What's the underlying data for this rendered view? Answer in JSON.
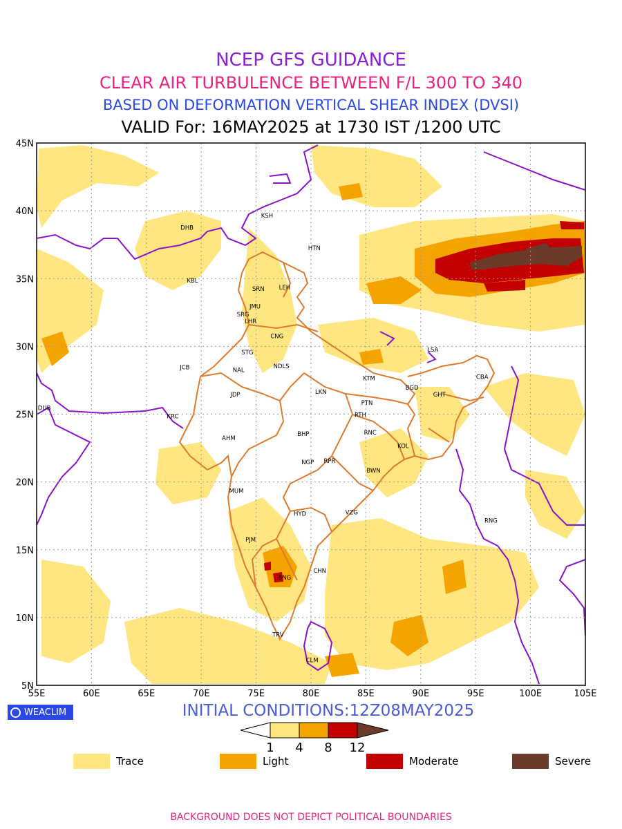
{
  "header": {
    "title1": "NCEP GFS GUIDANCE",
    "title2": "CLEAR AIR TURBULENCE BETWEEN F/L 300 TO 340",
    "title3": "BASED ON DEFORMATION VERTICAL SHEAR INDEX (DVSI)",
    "title4": "VALID For: 16MAY2025 at 1730 IST /1200 UTC"
  },
  "colors": {
    "title1": "#8a1fd6",
    "title2": "#e8237f",
    "title3": "#2a48e6",
    "init": "#4a5cd8",
    "disclaimer": "#e8237f",
    "boundary": "#8b12c9",
    "state_border": "#e07a2c",
    "trace": "#ffe680",
    "light": "#f5a300",
    "moderate": "#c20000",
    "severe": "#6b3a2a"
  },
  "map": {
    "lon_ticks": [
      "55E",
      "60E",
      "65E",
      "70E",
      "75E",
      "80E",
      "85E",
      "90E",
      "95E",
      "100E",
      "105E"
    ],
    "lat_ticks": [
      "5N",
      "10N",
      "15N",
      "20N",
      "25N",
      "30N",
      "35N",
      "40N",
      "45N"
    ],
    "stations": [
      {
        "code": "KSH",
        "lon": 76.0,
        "lat": 39.5
      },
      {
        "code": "HTN",
        "lon": 80.3,
        "lat": 37.1
      },
      {
        "code": "DHB",
        "lon": 68.7,
        "lat": 38.6
      },
      {
        "code": "KBL",
        "lon": 69.2,
        "lat": 34.7
      },
      {
        "code": "SRN",
        "lon": 75.2,
        "lat": 34.1
      },
      {
        "code": "LEH",
        "lon": 77.6,
        "lat": 34.2
      },
      {
        "code": "JMU",
        "lon": 74.9,
        "lat": 32.8
      },
      {
        "code": "SRG",
        "lon": 73.8,
        "lat": 32.2
      },
      {
        "code": "LHR",
        "lon": 74.5,
        "lat": 31.7
      },
      {
        "code": "CNG",
        "lon": 76.9,
        "lat": 30.6
      },
      {
        "code": "STG",
        "lon": 74.2,
        "lat": 29.4
      },
      {
        "code": "NAL",
        "lon": 73.4,
        "lat": 28.1
      },
      {
        "code": "JCB",
        "lon": 68.5,
        "lat": 28.3
      },
      {
        "code": "NDLS",
        "lon": 77.3,
        "lat": 28.4
      },
      {
        "code": "LSA",
        "lon": 91.1,
        "lat": 29.6
      },
      {
        "code": "CBA",
        "lon": 95.6,
        "lat": 27.6
      },
      {
        "code": "KTM",
        "lon": 85.3,
        "lat": 27.5
      },
      {
        "code": "BGD",
        "lon": 89.2,
        "lat": 26.8
      },
      {
        "code": "GHT",
        "lon": 91.7,
        "lat": 26.3
      },
      {
        "code": "JDP",
        "lon": 73.1,
        "lat": 26.3
      },
      {
        "code": "LKN",
        "lon": 80.9,
        "lat": 26.5
      },
      {
        "code": "PTN",
        "lon": 85.1,
        "lat": 25.7
      },
      {
        "code": "RTH",
        "lon": 84.5,
        "lat": 24.8
      },
      {
        "code": "DUB",
        "lon": 55.7,
        "lat": 25.3
      },
      {
        "code": "KRC",
        "lon": 67.4,
        "lat": 24.7
      },
      {
        "code": "AHM",
        "lon": 72.5,
        "lat": 23.1
      },
      {
        "code": "BHP",
        "lon": 79.3,
        "lat": 23.4
      },
      {
        "code": "RNC",
        "lon": 85.4,
        "lat": 23.5
      },
      {
        "code": "KOL",
        "lon": 88.4,
        "lat": 22.5
      },
      {
        "code": "NGP",
        "lon": 79.7,
        "lat": 21.3
      },
      {
        "code": "RPR",
        "lon": 81.7,
        "lat": 21.4
      },
      {
        "code": "BWN",
        "lon": 85.7,
        "lat": 20.7
      },
      {
        "code": "MUM",
        "lon": 73.2,
        "lat": 19.2
      },
      {
        "code": "HYD",
        "lon": 79.0,
        "lat": 17.5
      },
      {
        "code": "VZG",
        "lon": 83.7,
        "lat": 17.6
      },
      {
        "code": "RNG",
        "lon": 96.4,
        "lat": 17.0
      },
      {
        "code": "PJM",
        "lon": 74.5,
        "lat": 15.6
      },
      {
        "code": "CHN",
        "lon": 80.8,
        "lat": 13.3
      },
      {
        "code": "BNG",
        "lon": 77.6,
        "lat": 12.8
      },
      {
        "code": "TRV",
        "lon": 77.0,
        "lat": 8.6
      },
      {
        "code": "CLM",
        "lon": 80.1,
        "lat": 6.7
      }
    ]
  },
  "colorbar": {
    "ticks": [
      "1",
      "4",
      "8",
      "12"
    ]
  },
  "legend": [
    {
      "label": "Trace",
      "color_key": "trace"
    },
    {
      "label": "Light",
      "color_key": "light"
    },
    {
      "label": "Moderate",
      "color_key": "moderate"
    },
    {
      "label": "Severe",
      "color_key": "severe"
    }
  ],
  "footer": {
    "logo_text": "WEACLIM",
    "init_conditions": "INITIAL CONDITIONS:12Z08MAY2025",
    "disclaimer": "BACKGROUND DOES NOT DEPICT POLITICAL BOUNDARIES"
  }
}
